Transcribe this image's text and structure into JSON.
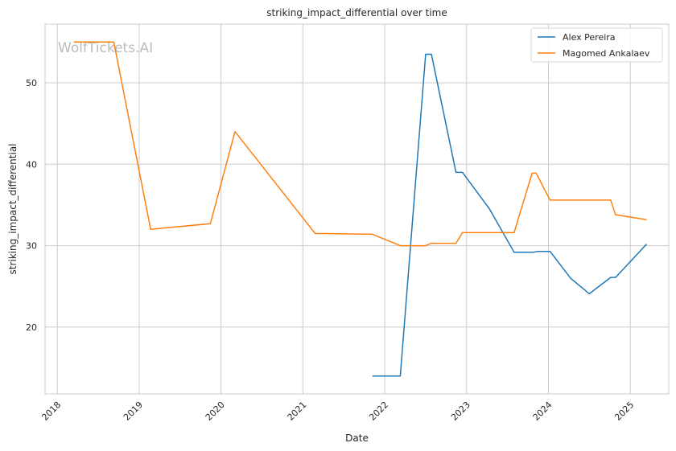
{
  "chart_data": {
    "type": "line",
    "title": "striking_impact_differential over time",
    "xlabel": "Date",
    "ylabel": "striking_impact_differential",
    "watermark": "WolfTickets.AI",
    "xlim": [
      2017.85,
      2025.47
    ],
    "ylim": [
      11.8,
      57.2
    ],
    "x_ticks": [
      {
        "value": 2018,
        "label": "2018"
      },
      {
        "value": 2019,
        "label": "2019"
      },
      {
        "value": 2020,
        "label": "2020"
      },
      {
        "value": 2021,
        "label": "2021"
      },
      {
        "value": 2022,
        "label": "2022"
      },
      {
        "value": 2023,
        "label": "2023"
      },
      {
        "value": 2024,
        "label": "2024"
      },
      {
        "value": 2025,
        "label": "2025"
      }
    ],
    "y_ticks": [
      {
        "value": 20,
        "label": "20"
      },
      {
        "value": 30,
        "label": "30"
      },
      {
        "value": 40,
        "label": "40"
      },
      {
        "value": 50,
        "label": "50"
      }
    ],
    "grid": true,
    "legend_position": "top-right",
    "series": [
      {
        "name": "Alex Pereira",
        "color": "#1f77b4",
        "x": [
          2021.85,
          2022.19,
          2022.5,
          2022.57,
          2022.87,
          2022.95,
          2023.28,
          2023.58,
          2023.82,
          2023.87,
          2024.02,
          2024.27,
          2024.5,
          2024.76,
          2024.82,
          2025.2
        ],
        "y": [
          14.0,
          14.0,
          53.5,
          53.5,
          39.0,
          39.0,
          34.5,
          29.2,
          29.2,
          29.3,
          29.3,
          26.0,
          24.1,
          26.1,
          26.1,
          30.2
        ]
      },
      {
        "name": "Magomed Ankalaev",
        "color": "#ff7f0e",
        "x": [
          2018.2,
          2018.69,
          2019.14,
          2019.87,
          2020.17,
          2021.15,
          2021.85,
          2022.19,
          2022.5,
          2022.57,
          2022.87,
          2022.95,
          2023.58,
          2023.8,
          2023.85,
          2024.02,
          2024.76,
          2024.82,
          2025.2
        ],
        "y": [
          55.0,
          55.0,
          32.0,
          32.7,
          44.0,
          31.5,
          31.4,
          30.0,
          30.0,
          30.3,
          30.3,
          31.6,
          31.6,
          38.9,
          38.9,
          35.6,
          35.6,
          33.8,
          33.2
        ]
      }
    ]
  }
}
